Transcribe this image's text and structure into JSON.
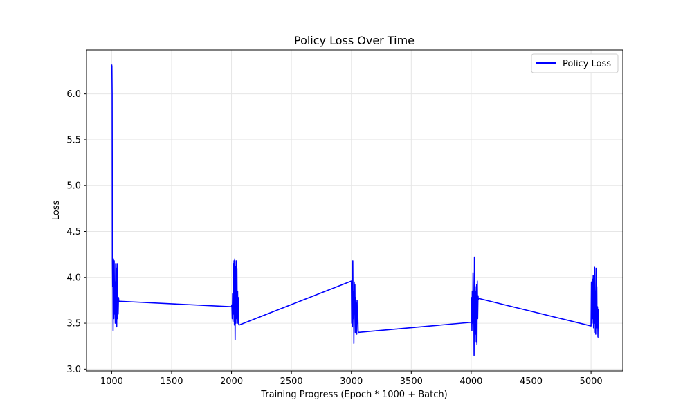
{
  "chart_data": {
    "type": "line",
    "title": "Policy Loss Over Time",
    "xlabel": "Training Progress (Epoch * 1000 + Batch)",
    "ylabel": "Loss",
    "xlim": [
      790,
      5265
    ],
    "ylim": [
      2.98,
      6.48
    ],
    "xticks": [
      1000,
      1500,
      2000,
      2500,
      3000,
      3500,
      4000,
      4500,
      5000
    ],
    "xtick_labels": [
      "1000",
      "1500",
      "2000",
      "2500",
      "3000",
      "3500",
      "4000",
      "4500",
      "5000"
    ],
    "yticks": [
      3.0,
      3.5,
      4.0,
      4.5,
      5.0,
      5.5,
      6.0
    ],
    "ytick_labels": [
      "3.0",
      "3.5",
      "4.0",
      "4.5",
      "5.0",
      "5.5",
      "6.0"
    ],
    "grid": true,
    "legend_position": "upper right",
    "series": [
      {
        "name": "Policy Loss",
        "color": "#0000ff",
        "x": [
          1000,
          1002,
          1004,
          1006,
          1008,
          1010,
          1012,
          1015,
          1018,
          1021,
          1024,
          1027,
          1030,
          1033,
          1036,
          1039,
          1042,
          1045,
          1048,
          1051,
          1054,
          1057,
          1060,
          1063,
          2000,
          2003,
          2006,
          2009,
          2012,
          2015,
          2018,
          2021,
          2024,
          2027,
          2030,
          2033,
          2036,
          2039,
          2042,
          2045,
          2048,
          2051,
          2054,
          2057,
          2060,
          2063,
          3000,
          3003,
          3006,
          3009,
          3012,
          3015,
          3018,
          3021,
          3024,
          3027,
          3030,
          3033,
          3036,
          3039,
          3042,
          3045,
          3048,
          3051,
          3054,
          3057,
          3060,
          3063,
          4000,
          4003,
          4006,
          4009,
          4012,
          4015,
          4018,
          4021,
          4024,
          4027,
          4030,
          4033,
          4036,
          4039,
          4042,
          4045,
          4048,
          4051,
          4054,
          4057,
          4060,
          4063,
          5000,
          5003,
          5006,
          5009,
          5012,
          5015,
          5018,
          5021,
          5024,
          5027,
          5030,
          5033,
          5036,
          5039,
          5042,
          5045,
          5048,
          5051,
          5054,
          5057,
          5060,
          5063
        ],
        "values": [
          6.32,
          6.3,
          6.0,
          4.2,
          3.9,
          4.0,
          3.42,
          4.2,
          3.55,
          4.18,
          3.6,
          3.95,
          3.5,
          4.15,
          3.55,
          4.1,
          3.46,
          4.15,
          3.55,
          3.8,
          3.6,
          3.78,
          3.74,
          3.74,
          3.68,
          3.7,
          3.55,
          3.82,
          3.52,
          4.15,
          3.6,
          4.18,
          3.48,
          4.2,
          3.32,
          4.12,
          3.5,
          4.18,
          3.55,
          4.1,
          3.58,
          3.85,
          3.5,
          3.78,
          3.49,
          3.48,
          3.96,
          3.5,
          3.68,
          3.46,
          4.18,
          3.55,
          3.85,
          3.28,
          3.95,
          3.6,
          3.92,
          3.4,
          3.78,
          3.45,
          3.72,
          3.38,
          3.75,
          3.5,
          3.6,
          3.41,
          3.4,
          3.4,
          3.51,
          3.78,
          3.42,
          3.85,
          3.5,
          4.05,
          3.6,
          3.85,
          3.15,
          4.22,
          3.45,
          3.9,
          3.38,
          3.85,
          3.3,
          3.92,
          3.27,
          3.96,
          3.55,
          3.8,
          3.76,
          3.77,
          3.47,
          3.95,
          3.62,
          3.5,
          3.98,
          3.55,
          4.02,
          3.45,
          3.9,
          3.4,
          4.11,
          3.5,
          3.85,
          3.38,
          4.1,
          3.45,
          3.9,
          3.35,
          3.68,
          3.45,
          3.65,
          3.34
        ]
      }
    ]
  }
}
